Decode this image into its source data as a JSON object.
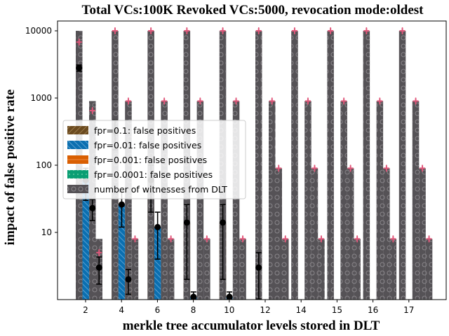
{
  "chart_data": {
    "type": "bar",
    "title": "Total VCs:100K Revoked VCs:5000, revocation mode:oldest",
    "xlabel": "merkle tree accumulator levels stored in DLT",
    "ylabel": "impact of false positive rate",
    "yscale": "log",
    "ylim": [
      1,
      14000
    ],
    "yticks": [
      10,
      100,
      1000,
      10000
    ],
    "ytick_labels": [
      "10",
      "100",
      "1000",
      "10000"
    ],
    "categories": [
      "2",
      "4",
      "6",
      "8",
      "10",
      "12",
      "14",
      "15",
      "16",
      "17"
    ],
    "legend_position": "center-left",
    "series": [
      {
        "name": "fpr=0.1: false positives",
        "color": "#6b4a1f",
        "hatch": "diagonal",
        "values": [
          2800,
          320,
          60,
          14,
          14,
          3,
          null,
          null,
          null,
          null
        ],
        "errors": [
          300,
          150,
          40,
          12,
          12,
          2,
          null,
          null,
          null,
          null
        ]
      },
      {
        "name": "fpr=0.01: false positives",
        "color": "#0b6fb0",
        "hatch": "backslash",
        "values": [
          60,
          26,
          12,
          1.1,
          1.1,
          null,
          null,
          null,
          null,
          null
        ],
        "errors": [
          30,
          14,
          8,
          0.2,
          0.2,
          null,
          null,
          null,
          null,
          null
        ]
      },
      {
        "name": "fpr=0.001: false positives",
        "color": "#d95f02",
        "hatch": "horizontal",
        "values": [
          23,
          2,
          null,
          null,
          null,
          null,
          null,
          null,
          null,
          null
        ],
        "errors": [
          8,
          0.8,
          null,
          null,
          null,
          null,
          null,
          null,
          null,
          null
        ]
      },
      {
        "name": "fpr=0.0001: false positives",
        "color": "#0a9e73",
        "hatch": "dots",
        "values": [
          3,
          null,
          null,
          null,
          null,
          null,
          null,
          null,
          null,
          null
        ],
        "errors": [
          1.3,
          null,
          null,
          null,
          null,
          null,
          null,
          null,
          null,
          null
        ]
      },
      {
        "name": "number of witnesses from DLT",
        "color": "#555256",
        "hatch": "circles",
        "witness_values": [
          [
            10000,
            900,
            8
          ],
          [
            10000,
            900,
            8
          ],
          [
            10000,
            900,
            8
          ],
          [
            10000,
            900,
            8
          ],
          [
            10000,
            900,
            8
          ],
          [
            10000,
            900,
            90,
            8
          ],
          [
            10000,
            900,
            90,
            8
          ],
          [
            10000,
            900,
            90,
            8
          ],
          [
            10000,
            900,
            90,
            8
          ],
          [
            10000,
            900,
            90,
            8
          ]
        ],
        "marker_values": [
          [
            6800,
            650,
            5
          ],
          [
            10000,
            900,
            8
          ],
          [
            10000,
            900,
            8
          ],
          [
            10000,
            900,
            8
          ],
          [
            10000,
            900,
            8
          ],
          [
            10000,
            900,
            90,
            8
          ],
          [
            10000,
            900,
            90,
            8
          ],
          [
            10000,
            900,
            90,
            8
          ],
          [
            10000,
            900,
            90,
            8
          ],
          [
            10000,
            900,
            90,
            8
          ]
        ],
        "marker_color": "#e0577a"
      }
    ]
  }
}
